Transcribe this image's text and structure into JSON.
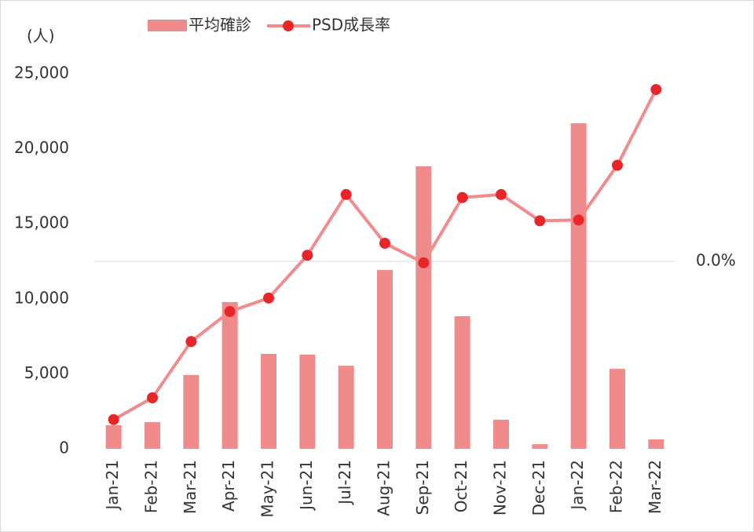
{
  "chart_data": {
    "type": "bar_line",
    "y_label": "(人)",
    "categories": [
      "Jan-21",
      "Feb-21",
      "Mar-21",
      "Apr-21",
      "May-21",
      "Jun-21",
      "Jul-21",
      "Aug-21",
      "Sep-21",
      "Oct-21",
      "Nov-21",
      "Dec-21",
      "Jan-22",
      "Feb-22",
      "Mar-22"
    ],
    "series": [
      {
        "name": "平均確診",
        "type": "bar",
        "color": "#f08b8b",
        "values": [
          1570,
          1780,
          4920,
          9780,
          6330,
          6280,
          5540,
          11920,
          18830,
          8840,
          1940,
          310,
          21700,
          5330,
          630
        ]
      },
      {
        "name": "PSD成長率",
        "type": "line",
        "axis": "y2",
        "color": "#f28b8b",
        "marker_color": "#e8262a",
        "values": [
          -21.1,
          -18.2,
          -10.7,
          -6.7,
          -4.9,
          0.8,
          8.9,
          2.4,
          -0.2,
          8.5,
          8.9,
          5.4,
          5.5,
          12.8,
          22.9
        ]
      }
    ],
    "ylim": [
      0,
      25000
    ],
    "yticks": [
      0,
      {
        "value": 5000,
        "label": "5,000"
      },
      {
        "value": 10000,
        "label": "10,000"
      },
      {
        "value": 15000,
        "label": "15,000"
      },
      {
        "value": 20000,
        "label": "20,000"
      },
      {
        "value": 25000,
        "label": "25,000"
      }
    ],
    "y2lim": [
      -25,
      25
    ],
    "y2ticks": [
      {
        "value": 0,
        "label": "0.0%"
      }
    ]
  }
}
